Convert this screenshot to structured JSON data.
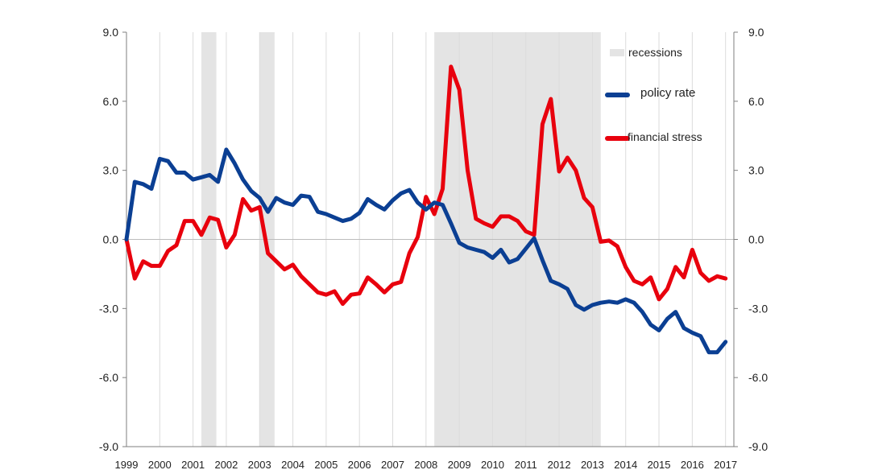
{
  "chart_data": {
    "type": "line",
    "title": "",
    "xlabel": "",
    "ylabel": "",
    "ylim": [
      -9,
      9
    ],
    "yticks": [
      "9.0",
      "6.0",
      "3.0",
      "0.0",
      "-3.0",
      "-6.0",
      "-9.0"
    ],
    "ytick_values": [
      9,
      6,
      3,
      0,
      -3,
      -6,
      -9
    ],
    "xlim": [
      1999,
      2017.25
    ],
    "xticks": [
      "1999",
      "2000",
      "2001",
      "2002",
      "2003",
      "2004",
      "2005",
      "2006",
      "2007",
      "2008",
      "2009",
      "2010",
      "2011",
      "2012",
      "2013",
      "2014",
      "2015",
      "2016",
      "2017"
    ],
    "grid": "vertical",
    "legend_position": "top-right",
    "legend": {
      "recessions_label": "recessions",
      "policy_label": "policy rate",
      "stress_label": "financial stress"
    },
    "recessions": [
      {
        "start": 2001.25,
        "end": 2001.7
      },
      {
        "start": 2003.0,
        "end": 2003.45
      },
      {
        "start": 2008.25,
        "end": 2013.25
      }
    ],
    "colors": {
      "policy": "#0b3f93",
      "stress": "#e8000d",
      "recession": "#e4e4e4",
      "grid": "#dcdcdc"
    },
    "series": [
      {
        "name": "policy rate",
        "x": [
          1999.0,
          1999.25,
          1999.5,
          1999.75,
          2000.0,
          2000.25,
          2000.5,
          2000.75,
          2001.0,
          2001.25,
          2001.5,
          2001.75,
          2002.0,
          2002.25,
          2002.5,
          2002.75,
          2003.0,
          2003.25,
          2003.5,
          2003.75,
          2004.0,
          2004.25,
          2004.5,
          2004.75,
          2005.0,
          2005.25,
          2005.5,
          2005.75,
          2006.0,
          2006.25,
          2006.5,
          2006.75,
          2007.0,
          2007.25,
          2007.5,
          2007.75,
          2008.0,
          2008.25,
          2008.5,
          2008.75,
          2009.0,
          2009.25,
          2009.5,
          2009.75,
          2010.0,
          2010.25,
          2010.5,
          2010.75,
          2011.0,
          2011.25,
          2011.5,
          2011.75,
          2012.0,
          2012.25,
          2012.5,
          2012.75,
          2013.0,
          2013.25,
          2013.5,
          2013.75,
          2014.0,
          2014.25,
          2014.5,
          2014.75,
          2015.0,
          2015.25,
          2015.5,
          2015.75,
          2016.0,
          2016.25,
          2016.5,
          2016.75,
          2017.0
        ],
        "values": [
          0.0,
          2.5,
          2.4,
          2.2,
          3.5,
          3.4,
          2.9,
          2.9,
          2.6,
          2.7,
          2.8,
          2.5,
          3.9,
          3.3,
          2.6,
          2.1,
          1.8,
          1.2,
          1.8,
          1.6,
          1.5,
          1.9,
          1.85,
          1.2,
          1.1,
          0.95,
          0.8,
          0.9,
          1.15,
          1.75,
          1.5,
          1.3,
          1.7,
          2.0,
          2.15,
          1.6,
          1.3,
          1.6,
          1.5,
          0.7,
          -0.15,
          -0.35,
          -0.45,
          -0.55,
          -0.8,
          -0.45,
          -1.0,
          -0.85,
          -0.4,
          0.05,
          -0.9,
          -1.8,
          -1.95,
          -2.15,
          -2.85,
          -3.05,
          -2.85,
          -2.75,
          -2.7,
          -2.75,
          -2.6,
          -2.75,
          -3.15,
          -3.7,
          -3.95,
          -3.45,
          -3.15,
          -3.85,
          -4.05,
          -4.2,
          -4.9,
          -4.9,
          -4.45
        ]
      },
      {
        "name": "financial stress",
        "x": [
          1999.0,
          1999.25,
          1999.5,
          1999.75,
          2000.0,
          2000.25,
          2000.5,
          2000.75,
          2001.0,
          2001.25,
          2001.5,
          2001.75,
          2002.0,
          2002.25,
          2002.5,
          2002.75,
          2003.0,
          2003.25,
          2003.5,
          2003.75,
          2004.0,
          2004.25,
          2004.5,
          2004.75,
          2005.0,
          2005.25,
          2005.5,
          2005.75,
          2006.0,
          2006.25,
          2006.5,
          2006.75,
          2007.0,
          2007.25,
          2007.5,
          2007.75,
          2008.0,
          2008.25,
          2008.5,
          2008.75,
          2009.0,
          2009.25,
          2009.5,
          2009.75,
          2010.0,
          2010.25,
          2010.5,
          2010.75,
          2011.0,
          2011.25,
          2011.5,
          2011.75,
          2012.0,
          2012.25,
          2012.5,
          2012.75,
          2013.0,
          2013.25,
          2013.5,
          2013.75,
          2014.0,
          2014.25,
          2014.5,
          2014.75,
          2015.0,
          2015.25,
          2015.5,
          2015.75,
          2016.0,
          2016.25,
          2016.5,
          2016.75,
          2017.0
        ],
        "values": [
          0.0,
          -1.7,
          -0.95,
          -1.15,
          -1.15,
          -0.5,
          -0.25,
          0.8,
          0.8,
          0.2,
          0.95,
          0.85,
          -0.35,
          0.2,
          1.75,
          1.25,
          1.4,
          -0.6,
          -0.95,
          -1.3,
          -1.1,
          -1.6,
          -1.95,
          -2.3,
          -2.4,
          -2.25,
          -2.8,
          -2.4,
          -2.35,
          -1.65,
          -1.95,
          -2.3,
          -1.95,
          -1.85,
          -0.6,
          0.1,
          1.85,
          1.1,
          2.2,
          7.5,
          6.5,
          3.0,
          0.9,
          0.7,
          0.55,
          1.0,
          1.0,
          0.8,
          0.35,
          0.2,
          5.0,
          6.1,
          2.95,
          3.55,
          3.0,
          1.8,
          1.4,
          -0.1,
          -0.05,
          -0.3,
          -1.2,
          -1.8,
          -1.95,
          -1.65,
          -2.6,
          -2.15,
          -1.2,
          -1.65,
          -0.45,
          -1.45,
          -1.8,
          -1.6,
          -1.7
        ]
      }
    ]
  }
}
